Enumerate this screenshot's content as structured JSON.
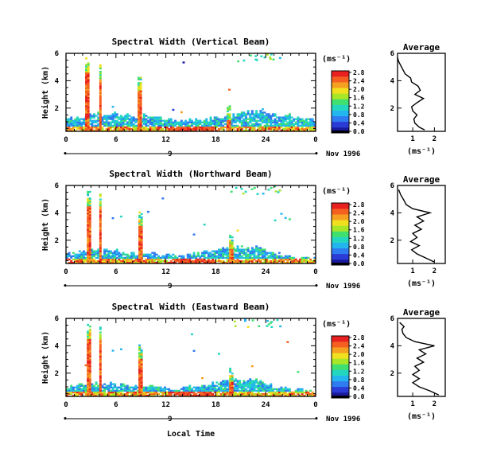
{
  "chart_data": [
    {
      "type": "heatmap",
      "title": "Spectral Width (Vertical Beam)",
      "ylabel": "Height (km)",
      "xlabel": "",
      "x_ticks": [
        "0",
        "6",
        "12",
        "18",
        "24",
        "0"
      ],
      "y_ticks": [
        "2",
        "4",
        "6"
      ],
      "xlim": [
        0,
        30
      ],
      "ylim": [
        0.3,
        6
      ],
      "date_marker": "9",
      "date_label": "Nov 1996",
      "colorbar": {
        "unit": "(ms⁻¹)",
        "ticks": [
          "0.0",
          "0.4",
          "0.8",
          "1.2",
          "1.6",
          "2.0",
          "2.4",
          "2.8"
        ],
        "range": [
          0,
          3.0
        ]
      },
      "average": {
        "title": "Average",
        "xlabel": "(ms⁻¹)",
        "x_ticks": [
          "1",
          "2"
        ],
        "y_ticks": [
          "2",
          "4",
          "6"
        ],
        "xlim": [
          0.3,
          2.5
        ],
        "ylim": [
          0.3,
          6
        ],
        "profile": [
          [
            1.55,
            0.4
          ],
          [
            1.3,
            0.6
          ],
          [
            1.1,
            0.9
          ],
          [
            1.05,
            1.2
          ],
          [
            1.2,
            1.5
          ],
          [
            1.0,
            1.8
          ],
          [
            0.95,
            2.1
          ],
          [
            1.2,
            2.4
          ],
          [
            1.5,
            2.7
          ],
          [
            1.1,
            3.0
          ],
          [
            1.35,
            3.3
          ],
          [
            1.25,
            3.6
          ],
          [
            0.95,
            3.9
          ],
          [
            0.9,
            4.2
          ],
          [
            0.65,
            4.5
          ],
          [
            0.55,
            4.8
          ],
          [
            0.45,
            5.1
          ],
          [
            0.35,
            5.4
          ],
          [
            0.3,
            5.7
          ]
        ]
      }
    },
    {
      "type": "heatmap",
      "title": "Spectral Width (Northward Beam)",
      "ylabel": "Height (km)",
      "xlabel": "",
      "x_ticks": [
        "0",
        "6",
        "12",
        "18",
        "24",
        "0"
      ],
      "y_ticks": [
        "2",
        "4",
        "6"
      ],
      "xlim": [
        0,
        30
      ],
      "ylim": [
        0.3,
        6
      ],
      "date_marker": "9",
      "date_label": "Nov 1996",
      "colorbar": {
        "unit": "(ms⁻¹)",
        "ticks": [
          "0.0",
          "0.4",
          "0.8",
          "1.2",
          "1.6",
          "2.0",
          "2.4",
          "2.8"
        ],
        "range": [
          0,
          3.0
        ]
      },
      "average": {
        "title": "Average",
        "xlabel": "(ms⁻¹)",
        "x_ticks": [
          "1",
          "2"
        ],
        "y_ticks": [
          "2",
          "4",
          "6"
        ],
        "xlim": [
          0.3,
          2.5
        ],
        "ylim": [
          0.3,
          6
        ],
        "profile": [
          [
            2.0,
            0.4
          ],
          [
            1.6,
            0.7
          ],
          [
            1.2,
            1.0
          ],
          [
            0.95,
            1.3
          ],
          [
            1.3,
            1.6
          ],
          [
            0.9,
            1.9
          ],
          [
            1.2,
            2.2
          ],
          [
            1.0,
            2.5
          ],
          [
            1.4,
            2.8
          ],
          [
            1.1,
            3.1
          ],
          [
            1.5,
            3.4
          ],
          [
            1.2,
            3.7
          ],
          [
            1.8,
            4.0
          ],
          [
            1.0,
            4.3
          ],
          [
            0.7,
            4.6
          ],
          [
            0.6,
            4.9
          ],
          [
            0.45,
            5.3
          ],
          [
            0.35,
            5.7
          ]
        ]
      }
    },
    {
      "type": "heatmap",
      "title": "Spectral Width (Eastward Beam)",
      "ylabel": "Height (km)",
      "xlabel": "Local Time",
      "x_ticks": [
        "0",
        "6",
        "12",
        "18",
        "24",
        "0"
      ],
      "y_ticks": [
        "2",
        "4",
        "6"
      ],
      "xlim": [
        0,
        30
      ],
      "ylim": [
        0.3,
        6
      ],
      "date_marker": "9",
      "date_label": "Nov 1996",
      "colorbar": {
        "unit": "(ms⁻¹)",
        "ticks": [
          "0.0",
          "0.4",
          "0.8",
          "1.2",
          "1.6",
          "2.0",
          "2.4",
          "2.8"
        ],
        "range": [
          0,
          3.0
        ]
      },
      "average": {
        "title": "Average",
        "xlabel": "(ms⁻¹)",
        "x_ticks": [
          "1",
          "2"
        ],
        "y_ticks": [
          "2",
          "4",
          "6"
        ],
        "xlim": [
          0.3,
          2.5
        ],
        "ylim": [
          0.3,
          6
        ],
        "profile": [
          [
            2.2,
            0.4
          ],
          [
            1.8,
            0.7
          ],
          [
            1.3,
            1.0
          ],
          [
            1.0,
            1.3
          ],
          [
            1.3,
            1.6
          ],
          [
            1.0,
            1.9
          ],
          [
            1.3,
            2.2
          ],
          [
            1.1,
            2.5
          ],
          [
            1.5,
            2.8
          ],
          [
            1.2,
            3.1
          ],
          [
            1.6,
            3.4
          ],
          [
            1.3,
            3.7
          ],
          [
            2.0,
            4.0
          ],
          [
            1.1,
            4.3
          ],
          [
            0.7,
            4.6
          ],
          [
            0.55,
            4.9
          ],
          [
            0.5,
            5.2
          ],
          [
            0.6,
            5.4
          ],
          [
            0.4,
            5.7
          ]
        ]
      }
    }
  ],
  "colors": {
    "scale": [
      "#1a1a9e",
      "#2b3cd6",
      "#2f7bf0",
      "#22b5ee",
      "#22d6c0",
      "#40e070",
      "#a8e628",
      "#f0e020",
      "#f5a020",
      "#f56020",
      "#e82020"
    ]
  }
}
